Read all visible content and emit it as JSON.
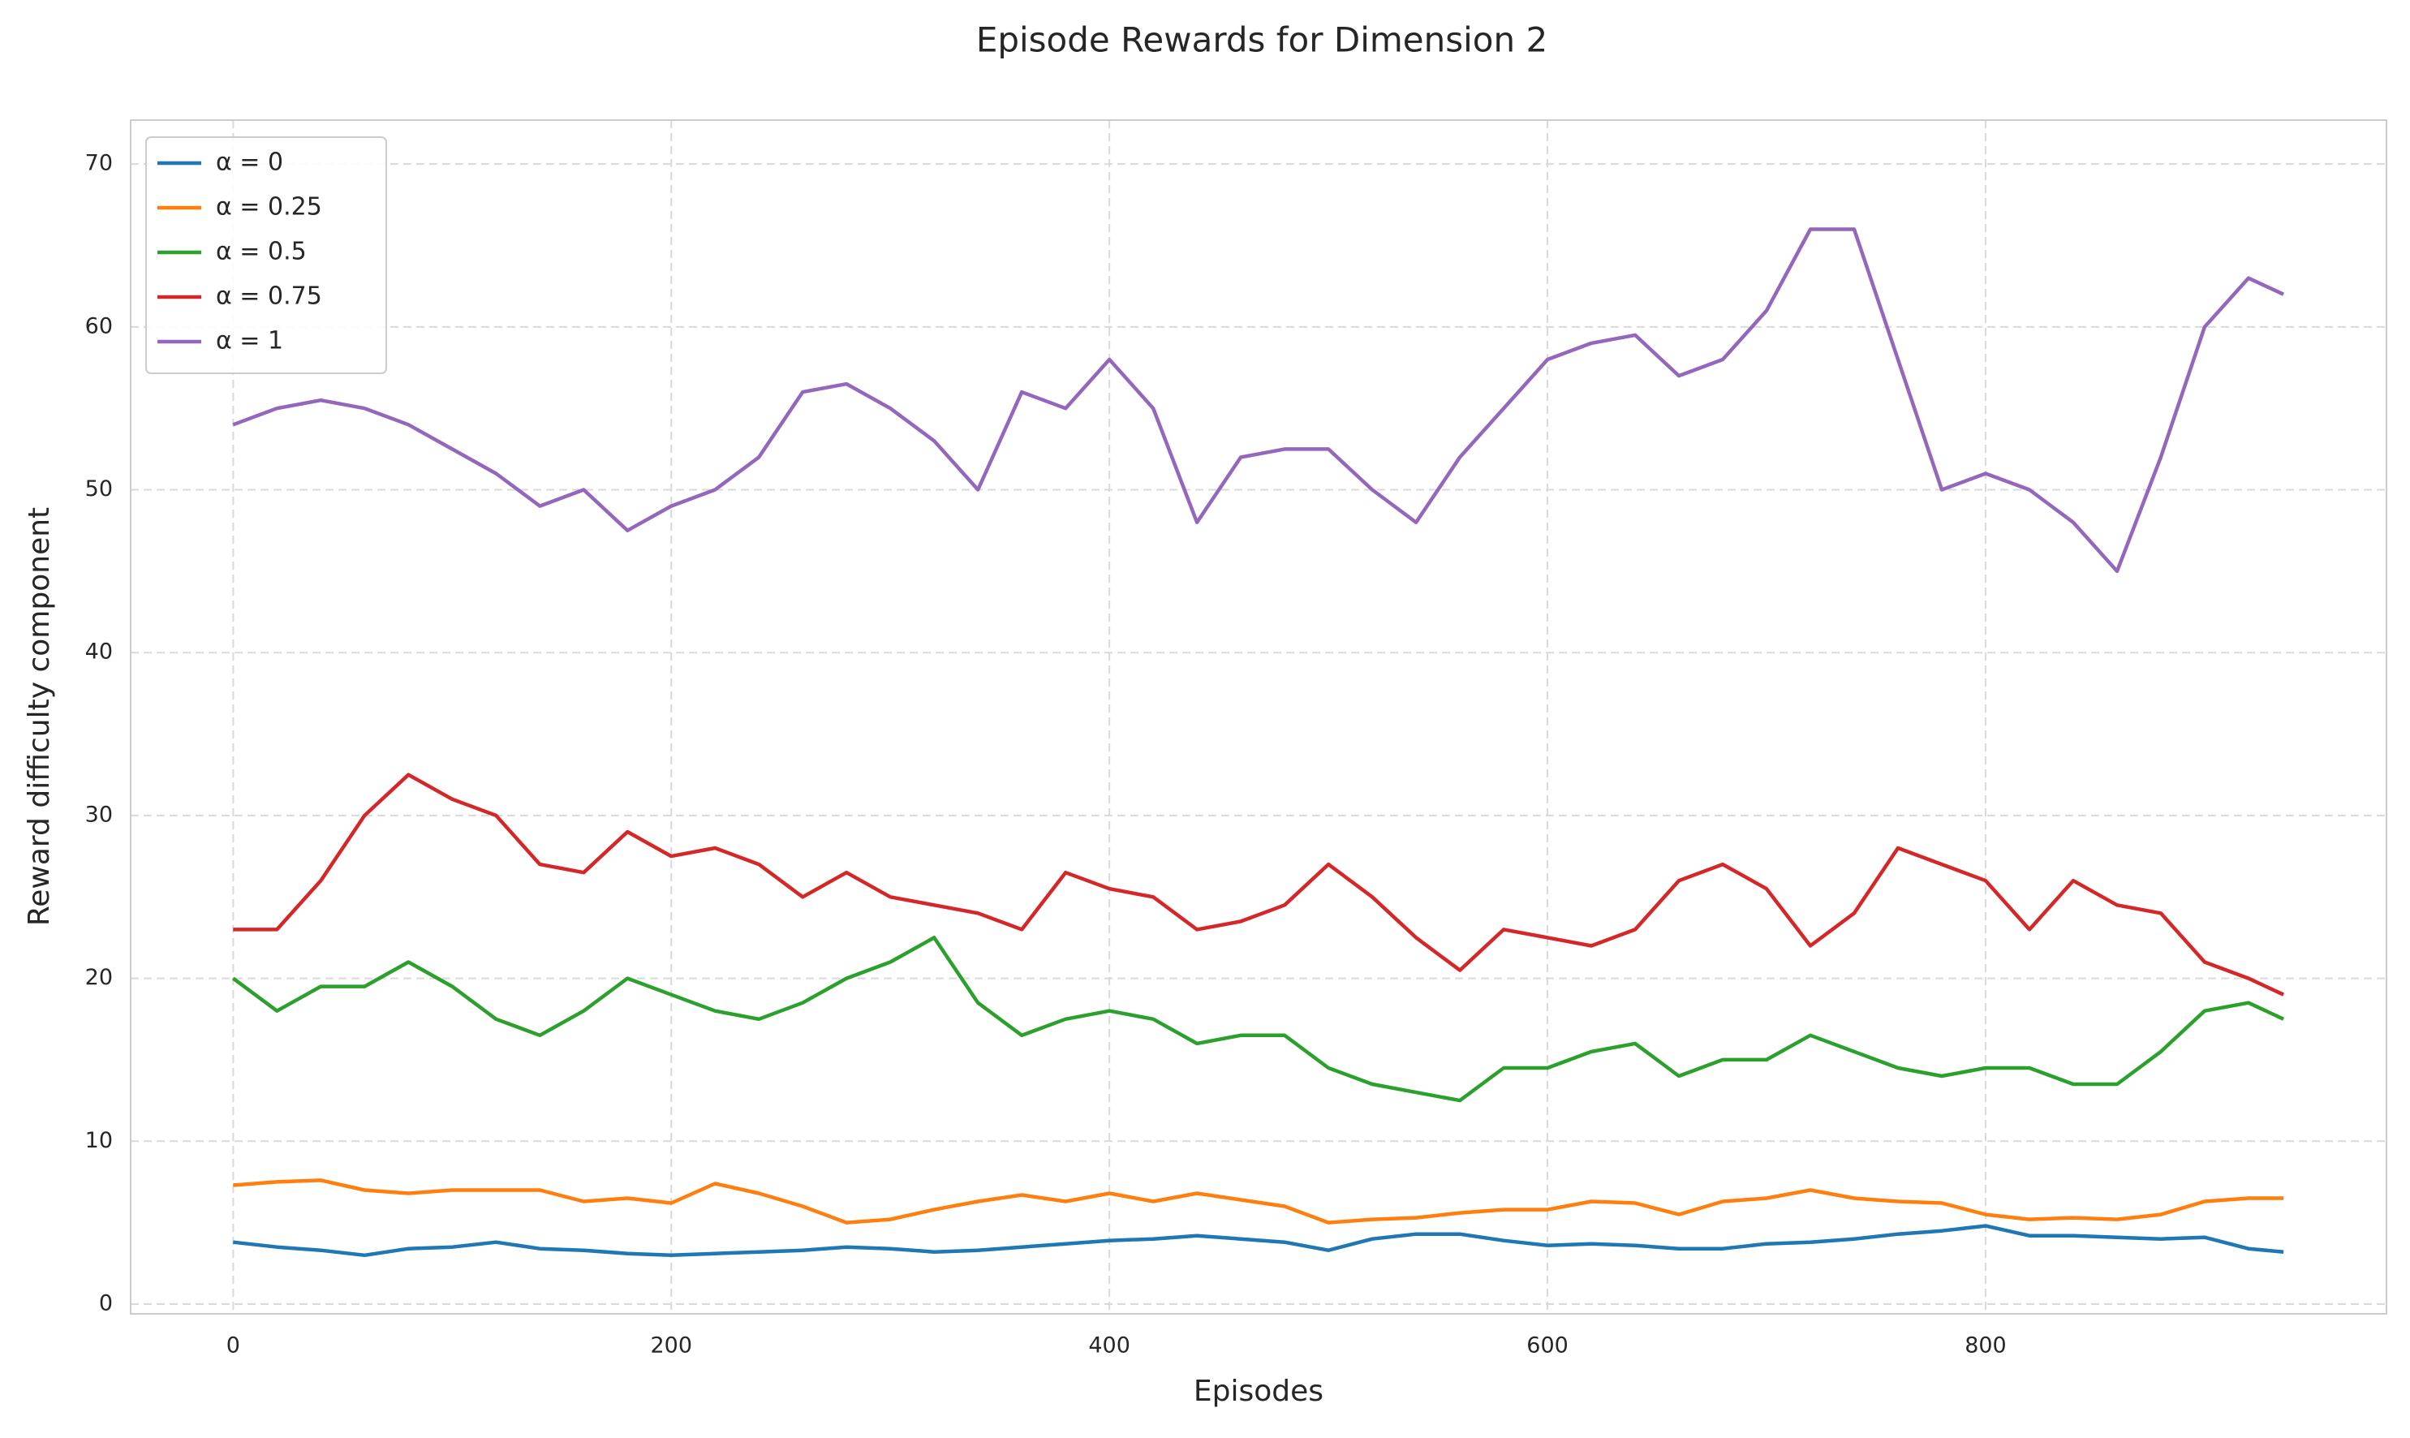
{
  "chart_data": {
    "type": "line",
    "title": "Episode Rewards for Dimension 2",
    "xlabel": "Episodes",
    "ylabel": "Reward difficulty component",
    "x": [
      0,
      20,
      40,
      60,
      80,
      100,
      120,
      140,
      160,
      180,
      200,
      220,
      240,
      260,
      280,
      300,
      320,
      340,
      360,
      380,
      400,
      420,
      440,
      460,
      480,
      500,
      520,
      540,
      560,
      580,
      600,
      620,
      640,
      660,
      680,
      700,
      720,
      740,
      760,
      780,
      800,
      820,
      840,
      860,
      880,
      900,
      920,
      936
    ],
    "series": [
      {
        "name": "α = 0",
        "color": "#1f77b4",
        "values": [
          3.8,
          3.5,
          3.3,
          3,
          3.4,
          3.5,
          3.8,
          3.4,
          3.3,
          3.1,
          3,
          3.1,
          3.2,
          3.3,
          3.5,
          3.4,
          3.2,
          3.3,
          3.5,
          3.7,
          3.9,
          4,
          4.2,
          4,
          3.8,
          3.3,
          4,
          4.3,
          4.3,
          3.9,
          3.6,
          3.7,
          3.6,
          3.4,
          3.4,
          3.7,
          3.8,
          4,
          4.3,
          4.5,
          4.8,
          4.2,
          4.2,
          4.1,
          4,
          4.1,
          3.4,
          3.2
        ]
      },
      {
        "name": "α = 0.25",
        "color": "#ff7f0e",
        "values": [
          7.3,
          7.5,
          7.6,
          7,
          6.8,
          7,
          7,
          7,
          6.3,
          6.5,
          6.2,
          7.4,
          6.8,
          6,
          5,
          5.2,
          5.8,
          6.3,
          6.7,
          6.3,
          6.8,
          6.3,
          6.8,
          6.4,
          6,
          5,
          5.2,
          5.3,
          5.6,
          5.8,
          5.8,
          6.3,
          6.2,
          5.5,
          6.3,
          6.5,
          7,
          6.5,
          6.3,
          6.2,
          5.5,
          5.2,
          5.3,
          5.2,
          5.5,
          6.3,
          6.5,
          6.5
        ]
      },
      {
        "name": "α = 0.5",
        "color": "#2ca02c",
        "values": [
          20,
          18,
          19.5,
          19.5,
          21,
          19.5,
          17.5,
          16.5,
          18,
          20,
          19,
          18,
          17.5,
          18.5,
          20,
          21,
          22.5,
          18.5,
          16.5,
          17.5,
          18,
          17.5,
          16,
          16.5,
          16.5,
          14.5,
          13.5,
          13,
          12.5,
          14.5,
          14.5,
          15.5,
          16,
          14,
          15,
          15,
          16.5,
          15.5,
          14.5,
          14,
          14.5,
          14.5,
          13.5,
          13.5,
          15.5,
          18,
          18.5,
          17.5
        ]
      },
      {
        "name": "α = 0.75",
        "color": "#d62728",
        "values": [
          23,
          23,
          26,
          30,
          32.5,
          31,
          30,
          27,
          26.5,
          29,
          27.5,
          28,
          27,
          25,
          26.5,
          25,
          24.5,
          24,
          23,
          26.5,
          25.5,
          25,
          23,
          23.5,
          24.5,
          27,
          25,
          22.5,
          20.5,
          23,
          22.5,
          22,
          23,
          26,
          27,
          25.5,
          22,
          24,
          28,
          27,
          26,
          23,
          26,
          24.5,
          24,
          21,
          20,
          19
        ]
      },
      {
        "name": "α = 1",
        "color": "#9467bd",
        "values": [
          54,
          55,
          55.5,
          55,
          54,
          52.5,
          51,
          49,
          50,
          47.5,
          49,
          50,
          52,
          56,
          56.5,
          55,
          53,
          50,
          56,
          55,
          58,
          55,
          48,
          52,
          52.5,
          52.5,
          50,
          48,
          52,
          55,
          58,
          59,
          59.5,
          57,
          58,
          61,
          66,
          66,
          58,
          50,
          51,
          50,
          48,
          45,
          52,
          60,
          63,
          62
        ]
      }
    ],
    "xlim": [
      -46.8,
      983
    ],
    "ylim": [
      -0.6,
      72.7
    ],
    "xticks": [
      0,
      200,
      400,
      600,
      800
    ],
    "yticks": [
      0,
      10,
      20,
      30,
      40,
      50,
      60,
      70
    ],
    "grid": true,
    "legend": "upper left"
  }
}
